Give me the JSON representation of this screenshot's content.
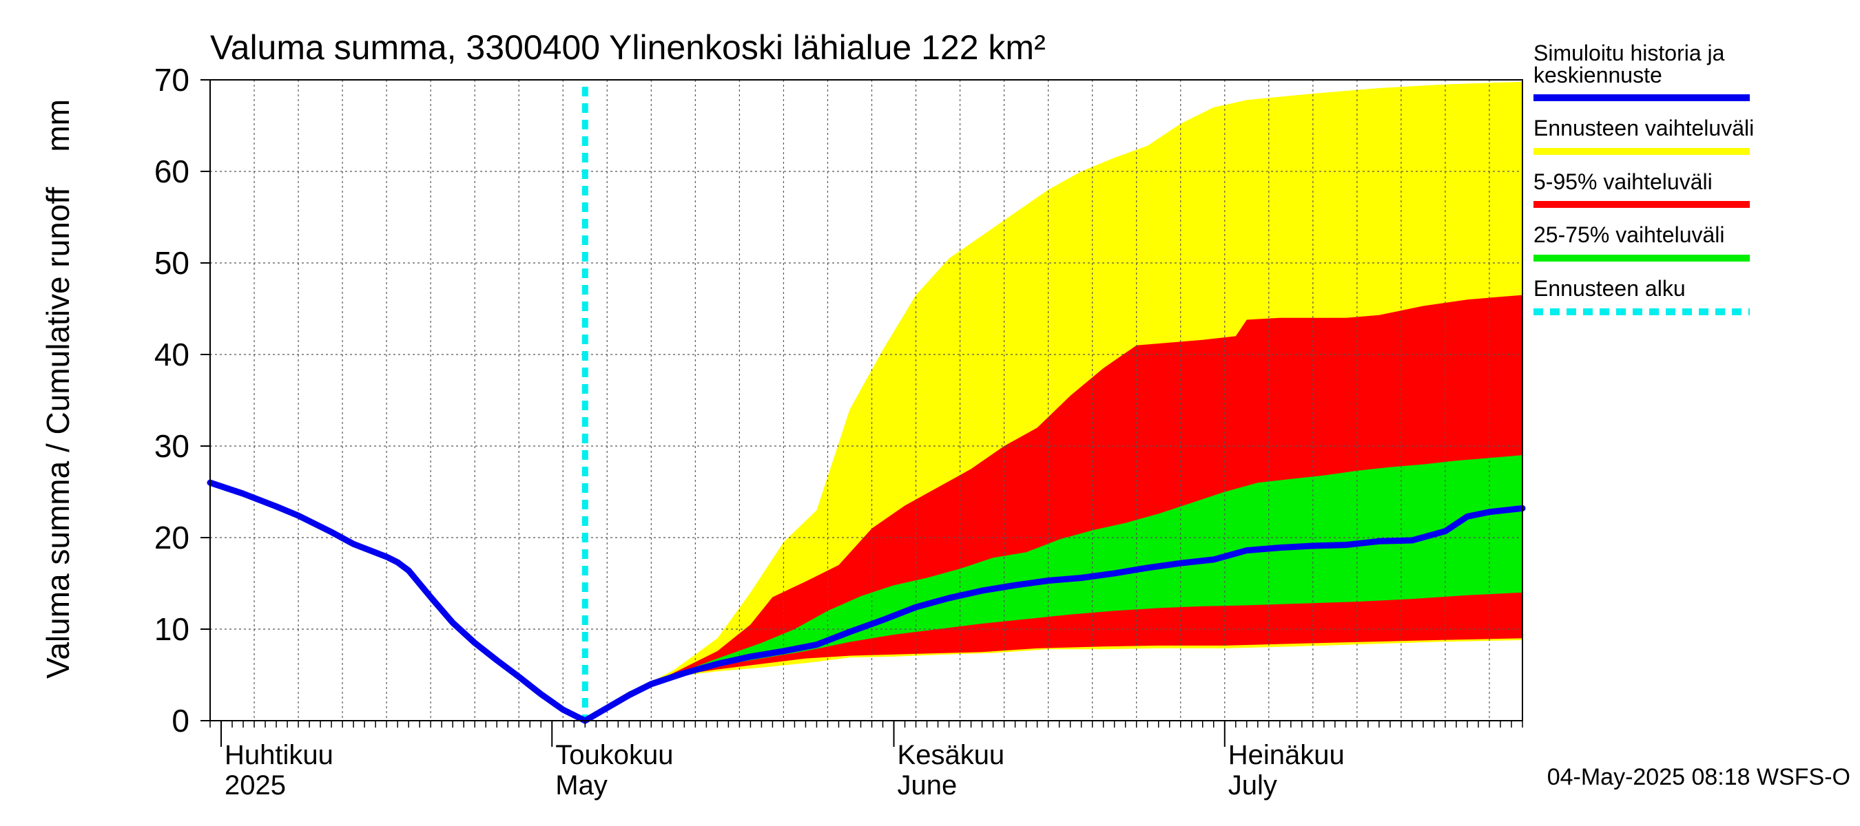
{
  "chart_data": {
    "type": "area",
    "title": "Valuma summa, 3300400 Ylinenkoski lähialue 122 km²",
    "ylabel": "Valuma summa / Cumulative runoff    mm",
    "xlabel": "",
    "ylim": [
      0,
      70
    ],
    "yticks": [
      0,
      10,
      20,
      30,
      40,
      50,
      60,
      70
    ],
    "grid": true,
    "legend_position": "right",
    "x_range": [
      "2025-03-31",
      "2025-07-28"
    ],
    "month_labels": [
      {
        "date": "2025-04-01",
        "fi": "Huhtikuu",
        "en": "2025"
      },
      {
        "date": "2025-05-01",
        "fi": "Toukokuu",
        "en": "May"
      },
      {
        "date": "2025-06-01",
        "fi": "Kesäkuu",
        "en": "June"
      },
      {
        "date": "2025-07-01",
        "fi": "Heinäkuu",
        "en": "July"
      }
    ],
    "forecast_start": "2025-05-04",
    "footer": "04-May-2025 08:18 WSFS-O",
    "colors": {
      "history": "#0000ee",
      "full_range": "#ffff00",
      "p5_95": "#ff0000",
      "p25_75": "#00ee00",
      "forecast_start": "#00eeee"
    },
    "legend": [
      {
        "label": "Simuloitu historia ja keskiennuste",
        "color": "#0000ee",
        "style": "solid"
      },
      {
        "label": "Ennusteen vaihteluväli",
        "color": "#ffff00",
        "style": "solid"
      },
      {
        "label": "5-95% vaihteluväli",
        "color": "#ff0000",
        "style": "solid"
      },
      {
        "label": "25-75% vaihteluväli",
        "color": "#00ee00",
        "style": "solid"
      },
      {
        "label": "Ennusteen alku",
        "color": "#00eeee",
        "style": "dashed"
      }
    ],
    "history": [
      [
        "2025-03-31",
        26.0
      ],
      [
        "2025-04-03",
        24.8
      ],
      [
        "2025-04-06",
        23.4
      ],
      [
        "2025-04-08",
        22.4
      ],
      [
        "2025-04-11",
        20.6
      ],
      [
        "2025-04-13",
        19.3
      ],
      [
        "2025-04-16",
        17.9
      ],
      [
        "2025-04-17",
        17.3
      ],
      [
        "2025-04-18",
        16.4
      ],
      [
        "2025-04-20",
        13.5
      ],
      [
        "2025-04-22",
        10.7
      ],
      [
        "2025-04-24",
        8.5
      ],
      [
        "2025-04-26",
        6.6
      ],
      [
        "2025-04-28",
        4.8
      ],
      [
        "2025-04-30",
        2.9
      ],
      [
        "2025-05-02",
        1.2
      ],
      [
        "2025-05-04",
        0.0
      ]
    ],
    "median": [
      [
        "2025-05-04",
        0.0
      ],
      [
        "2025-05-06",
        1.4
      ],
      [
        "2025-05-08",
        2.8
      ],
      [
        "2025-05-10",
        4.0
      ],
      [
        "2025-05-13",
        5.2
      ],
      [
        "2025-05-16",
        6.2
      ],
      [
        "2025-05-19",
        7.0
      ],
      [
        "2025-05-22",
        7.6
      ],
      [
        "2025-05-25",
        8.3
      ],
      [
        "2025-05-28",
        9.7
      ],
      [
        "2025-05-31",
        11.0
      ],
      [
        "2025-06-03",
        12.4
      ],
      [
        "2025-06-06",
        13.4
      ],
      [
        "2025-06-09",
        14.2
      ],
      [
        "2025-06-12",
        14.8
      ],
      [
        "2025-06-15",
        15.3
      ],
      [
        "2025-06-18",
        15.6
      ],
      [
        "2025-06-21",
        16.1
      ],
      [
        "2025-06-24",
        16.7
      ],
      [
        "2025-06-27",
        17.2
      ],
      [
        "2025-06-30",
        17.6
      ],
      [
        "2025-07-03",
        18.6
      ],
      [
        "2025-07-06",
        18.9
      ],
      [
        "2025-07-09",
        19.1
      ],
      [
        "2025-07-12",
        19.2
      ],
      [
        "2025-07-15",
        19.6
      ],
      [
        "2025-07-18",
        19.7
      ],
      [
        "2025-07-21",
        20.7
      ],
      [
        "2025-07-23",
        22.3
      ],
      [
        "2025-07-25",
        22.8
      ],
      [
        "2025-07-28",
        23.2
      ]
    ],
    "full_range": {
      "upper": [
        [
          "2025-05-04",
          0.0
        ],
        [
          "2025-05-08",
          3.0
        ],
        [
          "2025-05-12",
          5.5
        ],
        [
          "2025-05-16",
          9.0
        ],
        [
          "2025-05-19",
          14.0
        ],
        [
          "2025-05-22",
          19.5
        ],
        [
          "2025-05-25",
          23.0
        ],
        [
          "2025-05-28",
          34.0
        ],
        [
          "2025-05-31",
          40.5
        ],
        [
          "2025-06-03",
          46.5
        ],
        [
          "2025-06-06",
          50.5
        ],
        [
          "2025-06-09",
          53.0
        ],
        [
          "2025-06-12",
          55.5
        ],
        [
          "2025-06-15",
          58.0
        ],
        [
          "2025-06-18",
          60.0
        ],
        [
          "2025-06-21",
          61.5
        ],
        [
          "2025-06-24",
          62.8
        ],
        [
          "2025-06-27",
          65.2
        ],
        [
          "2025-06-30",
          67.0
        ],
        [
          "2025-07-03",
          67.8
        ],
        [
          "2025-07-09",
          68.5
        ],
        [
          "2025-07-15",
          69.1
        ],
        [
          "2025-07-21",
          69.5
        ],
        [
          "2025-07-28",
          69.8
        ]
      ],
      "lower": [
        [
          "2025-05-04",
          0.0
        ],
        [
          "2025-05-08",
          3.0
        ],
        [
          "2025-05-12",
          4.8
        ],
        [
          "2025-05-16",
          5.4
        ],
        [
          "2025-05-20",
          5.8
        ],
        [
          "2025-05-24",
          6.3
        ],
        [
          "2025-05-28",
          6.9
        ],
        [
          "2025-06-01",
          7.0
        ],
        [
          "2025-06-05",
          7.2
        ],
        [
          "2025-06-10",
          7.4
        ],
        [
          "2025-06-15",
          7.8
        ],
        [
          "2025-06-20",
          7.8
        ],
        [
          "2025-06-25",
          7.9
        ],
        [
          "2025-07-01",
          7.9
        ],
        [
          "2025-07-10",
          8.2
        ],
        [
          "2025-07-20",
          8.6
        ],
        [
          "2025-07-28",
          8.8
        ]
      ]
    },
    "p5_95": {
      "upper": [
        [
          "2025-05-04",
          0.0
        ],
        [
          "2025-05-08",
          3.0
        ],
        [
          "2025-05-12",
          5.2
        ],
        [
          "2025-05-16",
          7.6
        ],
        [
          "2025-05-19",
          10.5
        ],
        [
          "2025-05-21",
          13.5
        ],
        [
          "2025-05-24",
          15.2
        ],
        [
          "2025-05-27",
          17.0
        ],
        [
          "2025-05-30",
          21.0
        ],
        [
          "2025-06-02",
          23.5
        ],
        [
          "2025-06-05",
          25.5
        ],
        [
          "2025-06-08",
          27.5
        ],
        [
          "2025-06-11",
          30.0
        ],
        [
          "2025-06-14",
          32.0
        ],
        [
          "2025-06-17",
          35.5
        ],
        [
          "2025-06-20",
          38.5
        ],
        [
          "2025-06-23",
          41.0
        ],
        [
          "2025-06-26",
          41.3
        ],
        [
          "2025-06-29",
          41.6
        ],
        [
          "2025-07-02",
          42.0
        ],
        [
          "2025-07-03",
          43.8
        ],
        [
          "2025-07-06",
          44.0
        ],
        [
          "2025-07-12",
          44.0
        ],
        [
          "2025-07-15",
          44.3
        ],
        [
          "2025-07-19",
          45.3
        ],
        [
          "2025-07-23",
          46.0
        ],
        [
          "2025-07-28",
          46.5
        ]
      ],
      "lower": [
        [
          "2025-05-04",
          0.0
        ],
        [
          "2025-05-08",
          3.1
        ],
        [
          "2025-05-12",
          4.9
        ],
        [
          "2025-05-16",
          5.6
        ],
        [
          "2025-05-20",
          6.2
        ],
        [
          "2025-05-24",
          6.8
        ],
        [
          "2025-05-28",
          7.1
        ],
        [
          "2025-06-03",
          7.3
        ],
        [
          "2025-06-09",
          7.5
        ],
        [
          "2025-06-14",
          7.9
        ],
        [
          "2025-06-20",
          8.1
        ],
        [
          "2025-06-25",
          8.2
        ],
        [
          "2025-07-01",
          8.2
        ],
        [
          "2025-07-10",
          8.5
        ],
        [
          "2025-07-20",
          8.8
        ],
        [
          "2025-07-28",
          9.0
        ]
      ]
    },
    "p25_75": {
      "upper": [
        [
          "2025-05-04",
          0.0
        ],
        [
          "2025-05-08",
          3.0
        ],
        [
          "2025-05-12",
          5.0
        ],
        [
          "2025-05-16",
          6.8
        ],
        [
          "2025-05-20",
          8.5
        ],
        [
          "2025-05-23",
          10.0
        ],
        [
          "2025-05-26",
          12.0
        ],
        [
          "2025-05-29",
          13.6
        ],
        [
          "2025-06-01",
          14.8
        ],
        [
          "2025-06-04",
          15.6
        ],
        [
          "2025-06-07",
          16.6
        ],
        [
          "2025-06-10",
          17.8
        ],
        [
          "2025-06-13",
          18.4
        ],
        [
          "2025-06-16",
          19.8
        ],
        [
          "2025-06-19",
          20.8
        ],
        [
          "2025-06-22",
          21.6
        ],
        [
          "2025-06-25",
          22.6
        ],
        [
          "2025-06-28",
          23.8
        ],
        [
          "2025-07-01",
          25.0
        ],
        [
          "2025-07-04",
          26.0
        ],
        [
          "2025-07-07",
          26.4
        ],
        [
          "2025-07-10",
          26.8
        ],
        [
          "2025-07-13",
          27.3
        ],
        [
          "2025-07-16",
          27.7
        ],
        [
          "2025-07-19",
          28.0
        ],
        [
          "2025-07-22",
          28.4
        ],
        [
          "2025-07-25",
          28.7
        ],
        [
          "2025-07-28",
          29.0
        ]
      ],
      "lower": [
        [
          "2025-05-04",
          0.0
        ],
        [
          "2025-05-08",
          3.2
        ],
        [
          "2025-05-12",
          5.0
        ],
        [
          "2025-05-16",
          6.0
        ],
        [
          "2025-05-20",
          6.8
        ],
        [
          "2025-05-24",
          7.6
        ],
        [
          "2025-05-28",
          8.6
        ],
        [
          "2025-06-01",
          9.4
        ],
        [
          "2025-06-05",
          10.0
        ],
        [
          "2025-06-09",
          10.6
        ],
        [
          "2025-06-13",
          11.1
        ],
        [
          "2025-06-17",
          11.6
        ],
        [
          "2025-06-21",
          12.0
        ],
        [
          "2025-06-25",
          12.3
        ],
        [
          "2025-06-29",
          12.5
        ],
        [
          "2025-07-03",
          12.6
        ],
        [
          "2025-07-08",
          12.8
        ],
        [
          "2025-07-13",
          13.0
        ],
        [
          "2025-07-18",
          13.3
        ],
        [
          "2025-07-23",
          13.7
        ],
        [
          "2025-07-28",
          14.0
        ]
      ]
    }
  }
}
